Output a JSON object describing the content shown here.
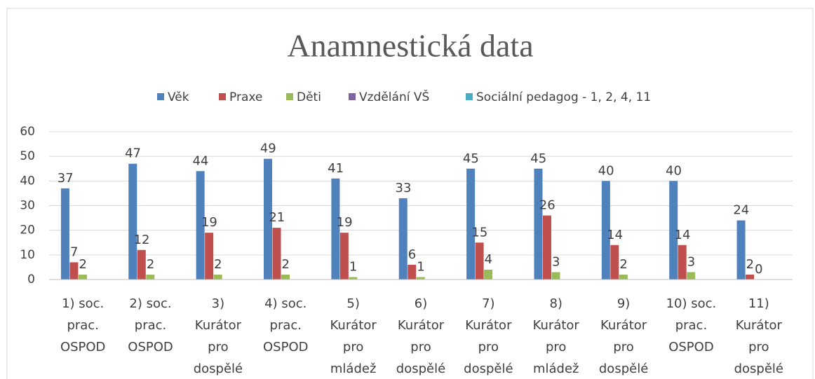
{
  "chart_data": {
    "type": "bar",
    "title": "Anamnestická data",
    "categories": [
      "1) soc.\nprac.\nOSPOD",
      "2) soc.\nprac.\nOSPOD",
      "3)\nKurátor\npro\ndospělé",
      "4) soc.\nprac.\nOSPOD",
      "5)\nKurátor\npro\nmládež",
      "6)\nKurátor\npro\ndospělé",
      "7)\nKurátor\npro\ndospělé",
      "8)\nKurátor\npro\nmládež",
      "9)\nKurátor\npro\ndospělé",
      "10) soc.\nprac.\nOSPOD",
      "11)\nKurátor\npro\ndospělé"
    ],
    "series": [
      {
        "name": "Věk",
        "color": "#4f81bd",
        "values": [
          37,
          47,
          44,
          49,
          41,
          33,
          45,
          45,
          40,
          40,
          24
        ]
      },
      {
        "name": "Praxe",
        "color": "#c0504d",
        "values": [
          7,
          12,
          19,
          21,
          19,
          6,
          15,
          26,
          14,
          14,
          2
        ]
      },
      {
        "name": "Děti",
        "color": "#9bbb59",
        "values": [
          2,
          2,
          2,
          2,
          1,
          1,
          4,
          3,
          2,
          3,
          0
        ]
      },
      {
        "name": "Vzdělání VŠ",
        "color": "#8064a2",
        "values": [
          null,
          null,
          null,
          null,
          null,
          null,
          null,
          null,
          null,
          null,
          null
        ]
      },
      {
        "name": "Sociální pedagog - 1, 2, 4, 11",
        "color": "#4bacc6",
        "values": [
          null,
          null,
          null,
          null,
          null,
          null,
          null,
          null,
          null,
          null,
          null
        ]
      }
    ],
    "ylim": [
      0,
      60
    ],
    "yticks": [
      0,
      10,
      20,
      30,
      40,
      50,
      60
    ],
    "grid": true,
    "legend": "top"
  }
}
